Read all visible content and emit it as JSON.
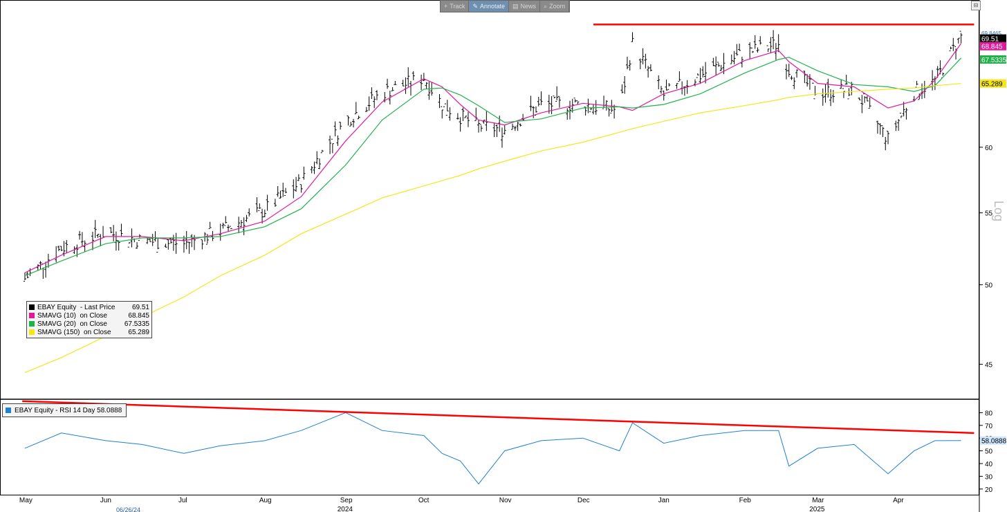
{
  "toolbar": [
    {
      "label": "Track",
      "icon": "plus-icon",
      "glyph": "+",
      "active": false
    },
    {
      "label": "Annotate",
      "icon": "pencil-icon",
      "glyph": "✎",
      "active": true
    },
    {
      "label": "News",
      "icon": "news-icon",
      "glyph": "▤",
      "active": false
    },
    {
      "label": "Zoom",
      "icon": "magnifier-icon",
      "glyph": "⌕",
      "active": false
    }
  ],
  "legend": {
    "items": [
      {
        "label": "EBAY Equity  - Last Price",
        "value": "69.51",
        "color": "#000000"
      },
      {
        "label": "SMAVG (10)  on Close   ",
        "value": "68.845",
        "color": "#e0199b"
      },
      {
        "label": "SMAVG (20)  on Close   ",
        "value": "67.5335",
        "color": "#21b24b"
      },
      {
        "label": "SMAVG (150)  on Close  ",
        "value": "65.289",
        "color": "#f5e61c"
      }
    ]
  },
  "rsi_legend": {
    "label": "EBAY Equity  - RSI 14 Day 58.0888",
    "color": "#1e7fd6"
  },
  "price_axis_labels": {
    "top": "69.8465",
    "last": "69.51",
    "sma10": "68.845",
    "sma20": "67.5335",
    "sma150": "65.289"
  },
  "scale_label": "Log",
  "month_labels": [
    "May",
    "Jun",
    "Jul",
    "Aug",
    "Sep",
    "Oct",
    "Nov",
    "Dec",
    "Jan",
    "Feb",
    "Mar",
    "Apr"
  ],
  "year_labels": [
    "2024",
    "2025"
  ],
  "cursor_date": "06/26/24",
  "colors": {
    "price": "#000000",
    "sma10": "#e0199b",
    "sma20": "#21b24b",
    "sma150": "#f5e61c",
    "rsi": "#1e7fd6",
    "trendline": "#ff0000"
  },
  "chart_data": [
    {
      "type": "line",
      "title": "EBAY Equity",
      "ylabel": "Log",
      "y_scale": "log",
      "ylim": [
        43,
        72
      ],
      "y_ticks": [
        45,
        50,
        55,
        60
      ],
      "x": [
        "2024-05-01",
        "2024-05-15",
        "2024-06-01",
        "2024-06-15",
        "2024-07-01",
        "2024-07-15",
        "2024-08-01",
        "2024-08-15",
        "2024-09-01",
        "2024-09-15",
        "2024-10-01",
        "2024-10-08",
        "2024-10-15",
        "2024-10-22",
        "2024-11-01",
        "2024-11-15",
        "2024-12-01",
        "2024-12-15",
        "2024-12-20",
        "2025-01-01",
        "2025-01-15",
        "2025-02-01",
        "2025-02-14",
        "2025-02-18",
        "2025-03-01",
        "2025-03-15",
        "2025-03-28",
        "2025-04-07",
        "2025-04-15",
        "2025-04-25"
      ],
      "series": [
        {
          "name": "EBAY Equity  - Last Price",
          "values": [
            50.4,
            52.5,
            53.6,
            53.0,
            52.8,
            53.7,
            55.2,
            57.3,
            62.1,
            64.5,
            65.8,
            63.5,
            62.5,
            61.7,
            61.4,
            63.5,
            63.5,
            63.0,
            68.8,
            64.3,
            66.0,
            68.0,
            68.8,
            66.5,
            64.5,
            64.8,
            60.6,
            64.5,
            65.5,
            69.51
          ]
        },
        {
          "name": "SMAVG (10)  on Close",
          "values": [
            50.8,
            52.0,
            53.3,
            53.3,
            53.0,
            53.5,
            54.4,
            56.2,
            60.5,
            63.7,
            65.7,
            65.0,
            63.5,
            62.2,
            61.8,
            62.8,
            63.6,
            63.3,
            63.0,
            64.4,
            65.3,
            67.3,
            68.2,
            67.2,
            65.3,
            65.0,
            63.2,
            63.8,
            65.6,
            68.845
          ]
        },
        {
          "name": "SMAVG (20)  on Close",
          "values": [
            50.6,
            51.6,
            52.8,
            53.2,
            53.2,
            53.3,
            54.0,
            55.3,
            58.6,
            62.2,
            64.8,
            64.9,
            64.3,
            63.4,
            62.0,
            62.3,
            63.2,
            63.3,
            63.2,
            63.5,
            64.4,
            66.2,
            67.4,
            67.6,
            66.4,
            65.2,
            65.0,
            64.6,
            65.1,
            67.5335
          ]
        },
        {
          "name": "SMAVG (150)  on Close",
          "values": [
            44.5,
            45.4,
            46.7,
            47.9,
            49.2,
            50.6,
            52.0,
            53.5,
            54.9,
            56.1,
            57.0,
            57.4,
            57.8,
            58.3,
            58.9,
            59.7,
            60.4,
            61.2,
            61.5,
            62.1,
            62.8,
            63.4,
            63.9,
            64.1,
            64.4,
            64.6,
            64.8,
            64.9,
            65.1,
            65.289
          ]
        }
      ],
      "resistance_line": {
        "color": "#ff0000",
        "from": "2024-12-05",
        "to": "2025-04-30",
        "y": 70.6
      }
    },
    {
      "type": "line",
      "title": "EBAY Equity  - RSI 14 Day",
      "y_ticks": [
        20,
        30,
        40,
        50,
        60,
        70,
        80
      ],
      "ylim": [
        15,
        90
      ],
      "x": [
        "2024-05-01",
        "2024-05-15",
        "2024-06-01",
        "2024-06-15",
        "2024-07-01",
        "2024-07-15",
        "2024-08-01",
        "2024-08-15",
        "2024-09-01",
        "2024-09-15",
        "2024-10-01",
        "2024-10-08",
        "2024-10-15",
        "2024-10-22",
        "2024-11-01",
        "2024-11-15",
        "2024-12-01",
        "2024-12-15",
        "2024-12-20",
        "2025-01-01",
        "2025-01-15",
        "2025-02-01",
        "2025-02-14",
        "2025-02-18",
        "2025-03-01",
        "2025-03-15",
        "2025-03-28",
        "2025-04-07",
        "2025-04-15",
        "2025-04-25"
      ],
      "series": [
        {
          "name": "EBAY Equity  - RSI 14 Day",
          "values": [
            52,
            64,
            58,
            55,
            48,
            54,
            58,
            66,
            80,
            66,
            62,
            48,
            42,
            24,
            50,
            58,
            60,
            50,
            72,
            56,
            62,
            66,
            66,
            38,
            52,
            55,
            32,
            50,
            58,
            58.0888
          ]
        }
      ],
      "trendline": {
        "color": "#ff0000",
        "from": {
          "x": "2024-04-30",
          "y": 89
        },
        "to": {
          "x": "2025-04-30",
          "y": 64
        }
      },
      "last_value": "58.0888"
    }
  ]
}
